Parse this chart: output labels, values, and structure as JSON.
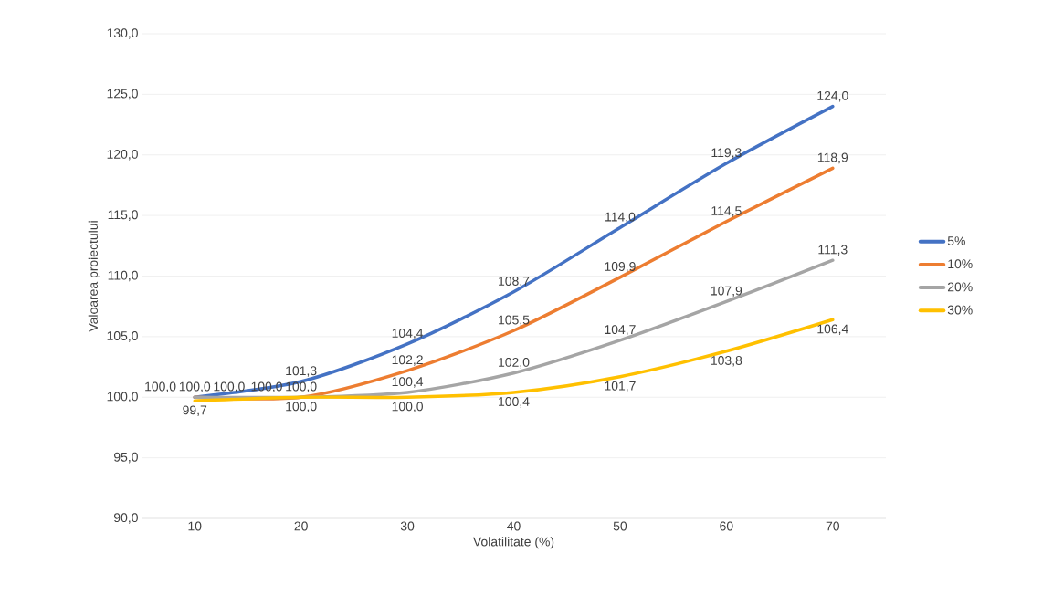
{
  "chart_data": {
    "type": "line",
    "xlabel": "Volatilitate (%)",
    "ylabel": "Valoarea proiectului",
    "categories": [
      "10",
      "20",
      "30",
      "40",
      "50",
      "60",
      "70"
    ],
    "series": [
      {
        "name": "5%",
        "color": "#4472c4",
        "values": [
          100.0,
          101.3,
          104.4,
          108.7,
          114.0,
          119.3,
          124.0
        ],
        "value_labels": [
          "100,0",
          "101,3",
          "104,4",
          "108,7",
          "114,0",
          "119,3",
          "124,0"
        ]
      },
      {
        "name": "10%",
        "color": "#ed7d31",
        "values": [
          100.0,
          100.0,
          102.2,
          105.5,
          109.9,
          114.5,
          118.9
        ],
        "value_labels": [
          "100,0",
          "100,0",
          "102,2",
          "105,5",
          "109,9",
          "114,5",
          "118,9"
        ]
      },
      {
        "name": "20%",
        "color": "#a5a5a5",
        "values": [
          100.0,
          100.0,
          100.4,
          102.0,
          104.7,
          107.9,
          111.3
        ],
        "value_labels": [
          "100,0",
          "100,0",
          "100,4",
          "102,0",
          "104,7",
          "107,9",
          "111,3"
        ]
      },
      {
        "name": "30%",
        "color": "#ffc000",
        "values": [
          99.7,
          100.0,
          100.0,
          100.4,
          101.7,
          103.8,
          106.4
        ],
        "value_labels": [
          "99,7",
          "100,0",
          "100,0",
          "100,4",
          "101,7",
          "103,8",
          "106,4"
        ]
      }
    ],
    "ylim": [
      90,
      130
    ],
    "yticks": [
      {
        "value": 90,
        "label": "90,0"
      },
      {
        "value": 95,
        "label": "95,0"
      },
      {
        "value": 100,
        "label": "100,0"
      },
      {
        "value": 105,
        "label": "105,0"
      },
      {
        "value": 110,
        "label": "110,0"
      },
      {
        "value": 115,
        "label": "115,0"
      },
      {
        "value": 120,
        "label": "120,0"
      },
      {
        "value": 125,
        "label": "125,0"
      },
      {
        "value": 130,
        "label": "130,0"
      }
    ],
    "grid": "y",
    "legend": "right",
    "marker": "none",
    "line_style": "solid"
  }
}
